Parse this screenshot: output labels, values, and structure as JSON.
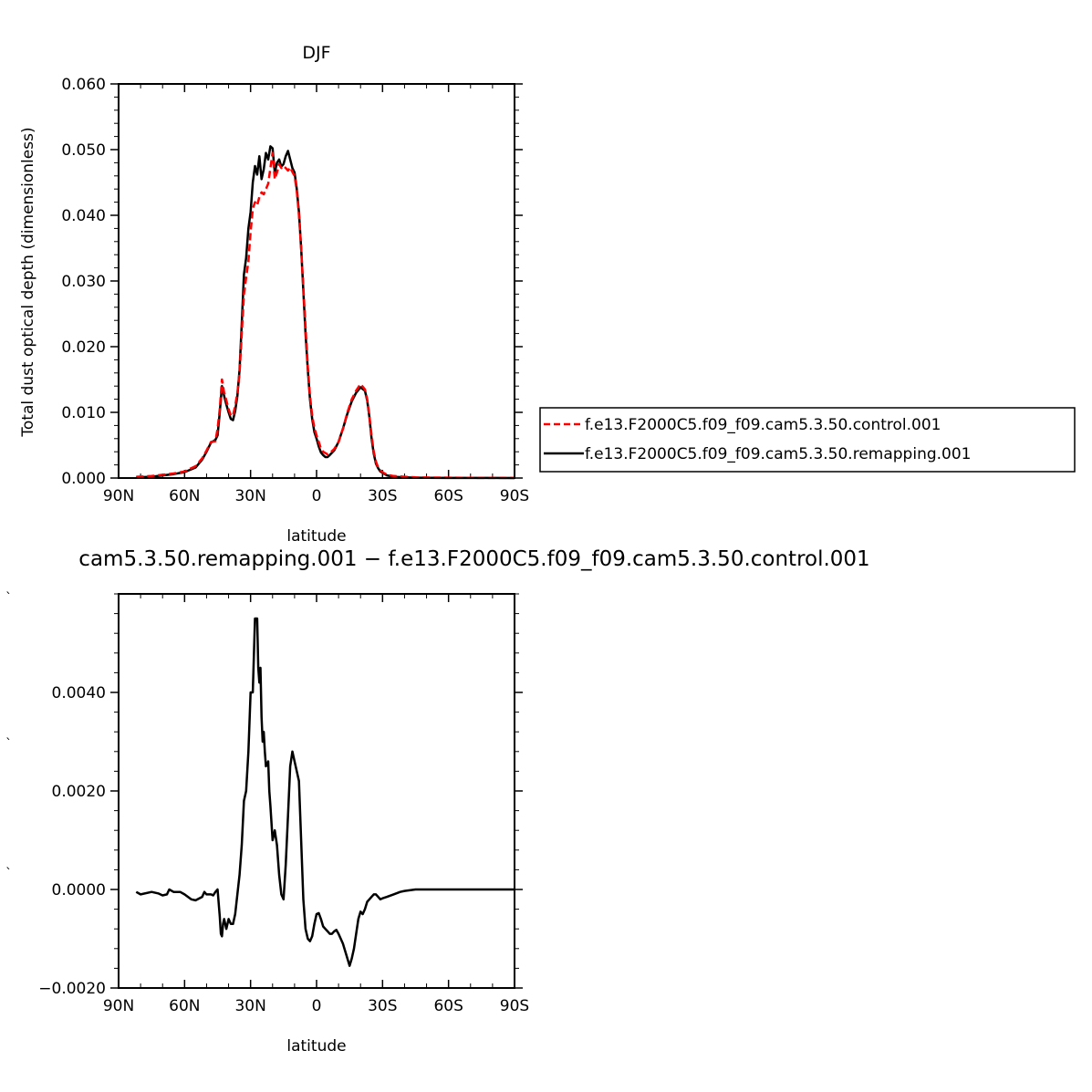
{
  "chart_data": [
    {
      "type": "line",
      "title": "DJF",
      "xlabel": "latitude",
      "ylabel": "Total dust optical depth (dimensionless)",
      "xlim": [
        90,
        -90
      ],
      "ylim": [
        0,
        0.06
      ],
      "x_ticks": [
        90,
        60,
        30,
        0,
        -30,
        -60,
        -90
      ],
      "x_tick_labels": [
        "90N",
        "60N",
        "30N",
        "0",
        "30S",
        "60S",
        "90S"
      ],
      "y_ticks": [
        0,
        0.01,
        0.02,
        0.03,
        0.04,
        0.05,
        0.06
      ],
      "y_tick_labels": [
        "0.000",
        "0.010",
        "0.020",
        "0.030",
        "0.040",
        "0.050",
        "0.060"
      ],
      "legend_position": "right of plot",
      "series": [
        {
          "name": "f.e13.F2000C5.f09_f09.cam5.3.50.control.001",
          "color": "#ff0000",
          "style": "dashed",
          "x": [
            82,
            75,
            70,
            65,
            60,
            55,
            52,
            50,
            48,
            46,
            45,
            44,
            43,
            42,
            41,
            40,
            39,
            38,
            37,
            36,
            35,
            34,
            33,
            32,
            31,
            30,
            29,
            28,
            27,
            26,
            25,
            24,
            23,
            22,
            21,
            20,
            19,
            18,
            17,
            16,
            15,
            14,
            13,
            12,
            11,
            10,
            9,
            8,
            7,
            6,
            5,
            4,
            3,
            2,
            1,
            0,
            -1,
            -2,
            -3,
            -4,
            -5,
            -6,
            -8,
            -10,
            -12,
            -14,
            -16,
            -18,
            -20,
            -22,
            -23,
            -24,
            -25,
            -26,
            -27,
            -28,
            -29,
            -30,
            -31,
            -32,
            -35,
            -40,
            -45,
            -50,
            -60,
            -70,
            -80,
            -90
          ],
          "y": [
            0.0002,
            0.0003,
            0.0005,
            0.0007,
            0.001,
            0.0018,
            0.003,
            0.0042,
            0.0055,
            0.0056,
            0.0075,
            0.0105,
            0.015,
            0.013,
            0.0118,
            0.0105,
            0.0095,
            0.0095,
            0.011,
            0.013,
            0.016,
            0.022,
            0.028,
            0.0305,
            0.033,
            0.0375,
            0.041,
            0.042,
            0.0415,
            0.0428,
            0.0435,
            0.0432,
            0.044,
            0.0448,
            0.0472,
            0.0495,
            0.0455,
            0.0465,
            0.0478,
            0.0472,
            0.0475,
            0.0472,
            0.0468,
            0.0473,
            0.0466,
            0.046,
            0.0437,
            0.04,
            0.035,
            0.029,
            0.023,
            0.017,
            0.0125,
            0.0095,
            0.0076,
            0.0065,
            0.0055,
            0.0045,
            0.004,
            0.0038,
            0.0036,
            0.0038,
            0.0044,
            0.0055,
            0.0075,
            0.01,
            0.012,
            0.0133,
            0.0143,
            0.0135,
            0.012,
            0.0095,
            0.0065,
            0.004,
            0.0025,
            0.0016,
            0.0012,
            0.0009,
            0.0007,
            0.0005,
            0.0003,
            0.0002,
            0.0001,
            8e-05,
            5e-05,
            3e-05,
            2e-05,
            1e-05
          ]
        },
        {
          "name": "f.e13.F2000C5.f09_f09.cam5.3.50.remapping.001",
          "color": "#000000",
          "style": "solid",
          "x": [
            82,
            75,
            70,
            65,
            60,
            55,
            52,
            50,
            48,
            46,
            45,
            44,
            43,
            42,
            41,
            40,
            39,
            38,
            37,
            36,
            35,
            34,
            33,
            32,
            31,
            30,
            29,
            28,
            27,
            26,
            25,
            24,
            23,
            22,
            21,
            20,
            19,
            18,
            17,
            16,
            15,
            14,
            13,
            12,
            11,
            10,
            9,
            8,
            7,
            6,
            5,
            4,
            3,
            2,
            1,
            0,
            -1,
            -2,
            -3,
            -4,
            -5,
            -6,
            -8,
            -10,
            -12,
            -14,
            -16,
            -18,
            -20,
            -22,
            -23,
            -24,
            -25,
            -26,
            -27,
            -28,
            -29,
            -30,
            -31,
            -32,
            -35,
            -40,
            -45,
            -50,
            -60,
            -70,
            -80,
            -90
          ],
          "y": [
            0.0001,
            0.0002,
            0.0004,
            0.0006,
            0.0009,
            0.0016,
            0.0028,
            0.004,
            0.0054,
            0.0058,
            0.0065,
            0.01,
            0.014,
            0.0125,
            0.0112,
            0.01,
            0.009,
            0.0088,
            0.0102,
            0.0125,
            0.0165,
            0.0235,
            0.031,
            0.0335,
            0.038,
            0.0405,
            0.045,
            0.0475,
            0.0462,
            0.049,
            0.0455,
            0.047,
            0.0495,
            0.0485,
            0.0505,
            0.0502,
            0.0465,
            0.048,
            0.0485,
            0.0474,
            0.0478,
            0.049,
            0.0498,
            0.0485,
            0.0472,
            0.0465,
            0.044,
            0.0405,
            0.035,
            0.0285,
            0.022,
            0.0165,
            0.012,
            0.009,
            0.007,
            0.006,
            0.0048,
            0.0039,
            0.0035,
            0.0032,
            0.0032,
            0.0035,
            0.0042,
            0.0055,
            0.0075,
            0.0098,
            0.0117,
            0.013,
            0.0138,
            0.0133,
            0.0118,
            0.0093,
            0.006,
            0.0037,
            0.0022,
            0.0015,
            0.001,
            0.0008,
            0.0006,
            0.0004,
            0.0002,
            0.0001,
            5e-05,
            3e-05,
            2e-05,
            1e-05,
            1e-05,
            0
          ]
        }
      ]
    },
    {
      "type": "line",
      "title": "cam5.3.50.remapping.001 − f.e13.F2000C5.f09_f09.cam5.3.50.control.001",
      "xlabel": "latitude",
      "ylabel": "",
      "xlim": [
        90,
        -90
      ],
      "ylim": [
        -0.002,
        0.006
      ],
      "x_ticks": [
        90,
        60,
        30,
        0,
        -30,
        -60,
        -90
      ],
      "x_tick_labels": [
        "90N",
        "60N",
        "30N",
        "0",
        "30S",
        "60S",
        "90S"
      ],
      "y_ticks": [
        -0.002,
        0,
        0.002,
        0.004
      ],
      "y_tick_labels": [
        "−0.0020",
        "0.0000",
        "0.0020",
        "0.0040"
      ],
      "series": [
        {
          "color": "#000000",
          "style": "solid",
          "x": [
            82,
            80,
            75,
            72,
            70,
            68,
            67,
            65,
            62,
            60,
            57,
            55,
            52,
            51,
            50,
            48,
            47,
            46,
            45,
            44,
            43.5,
            43,
            42.5,
            42,
            41,
            40,
            39,
            38,
            37,
            36,
            35,
            34,
            33,
            32,
            31,
            30,
            29,
            28,
            27.5,
            27,
            26.5,
            26,
            25.5,
            25,
            24.5,
            24,
            23.5,
            23,
            22,
            21.5,
            21,
            20,
            19,
            18,
            17,
            16,
            15,
            14,
            13,
            12,
            11,
            10,
            9,
            8,
            7,
            6,
            5,
            4,
            3,
            2,
            1,
            0,
            -1,
            -2,
            -3,
            -4,
            -5,
            -6,
            -7,
            -8,
            -9,
            -10,
            -12,
            -14,
            -15,
            -16,
            -17,
            -18,
            -19,
            -20,
            -21,
            -22,
            -23,
            -24,
            -25,
            -26,
            -27,
            -28,
            -29,
            -30,
            -32,
            -35,
            -38,
            -40,
            -45,
            -50,
            -60,
            -70,
            -80,
            -90
          ],
          "y": [
            -5e-05,
            -0.0001,
            -5e-05,
            -8e-05,
            -0.00012,
            -0.0001,
            0,
            -5e-05,
            -5e-05,
            -0.0001,
            -0.0002,
            -0.00022,
            -0.00015,
            -5e-05,
            -0.0001,
            -0.0001,
            -0.00012,
            -5e-05,
            0,
            -0.00055,
            -0.0009,
            -0.00095,
            -0.0007,
            -0.0006,
            -0.0008,
            -0.0006,
            -0.0007,
            -0.0007,
            -0.0005,
            -0.0001,
            0.0003,
            0.0009,
            0.0018,
            0.002,
            0.0028,
            0.004,
            0.004,
            0.0055,
            0.0055,
            0.0055,
            0.0045,
            0.0042,
            0.0045,
            0.0035,
            0.003,
            0.0032,
            0.0028,
            0.0025,
            0.0026,
            0.002,
            0.0017,
            0.001,
            0.0012,
            0.0009,
            0.0003,
            -0.0001,
            -0.0002,
            0.0005,
            0.0015,
            0.0025,
            0.0028,
            0.0026,
            0.0024,
            0.0022,
            0.001,
            -0.0002,
            -0.0008,
            -0.001,
            -0.00105,
            -0.00095,
            -0.0007,
            -0.0005,
            -0.00048,
            -0.0006,
            -0.00075,
            -0.0008,
            -0.00085,
            -0.0009,
            -0.0009,
            -0.00085,
            -0.00082,
            -0.0009,
            -0.0011,
            -0.0014,
            -0.00155,
            -0.0014,
            -0.0012,
            -0.0009,
            -0.0006,
            -0.00045,
            -0.0005,
            -0.0004,
            -0.00025,
            -0.0002,
            -0.00015,
            -0.0001,
            -0.0001,
            -0.00015,
            -0.0002,
            -0.00018,
            -0.00015,
            -0.0001,
            -5e-05,
            -3e-05,
            0,
            0,
            0,
            0,
            0,
            0
          ]
        }
      ]
    }
  ]
}
